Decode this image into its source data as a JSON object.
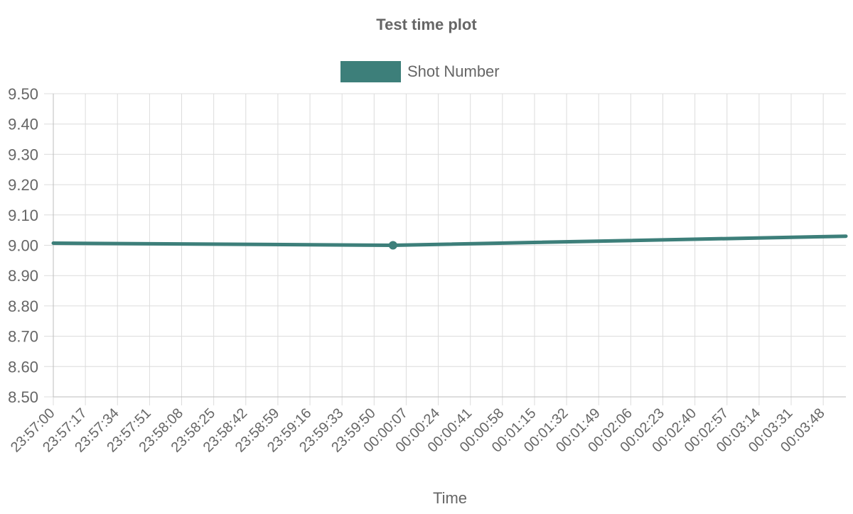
{
  "chart_data": {
    "type": "line",
    "title": "Test time plot",
    "xlabel": "Time",
    "ylabel": "",
    "x_ticks": [
      "23:57:00",
      "23:57:17",
      "23:57:34",
      "23:57:51",
      "23:58:08",
      "23:58:25",
      "23:58:42",
      "23:58:59",
      "23:59:16",
      "23:59:33",
      "23:59:50",
      "00:00:07",
      "00:00:24",
      "00:00:41",
      "00:00:58",
      "00:01:15",
      "00:01:32",
      "00:01:49",
      "00:02:06",
      "00:02:23",
      "00:02:40",
      "00:02:57",
      "00:03:14",
      "00:03:31",
      "00:03:48"
    ],
    "y_ticks": [
      "9.50",
      "9.40",
      "9.30",
      "9.20",
      "9.10",
      "9.00",
      "8.90",
      "8.80",
      "8.70",
      "8.60",
      "8.50"
    ],
    "ylim": [
      8.5,
      9.5
    ],
    "xlim": [
      "23:57:00",
      "00:04:00"
    ],
    "grid": true,
    "legend_position": "top",
    "series": [
      {
        "name": "Shot Number",
        "color": "#3d7f7a",
        "points": [
          {
            "x": "23:57:00",
            "y": 9.007
          },
          {
            "x": "00:00:00",
            "y": 9.0,
            "marker": true
          },
          {
            "x": "00:04:00",
            "y": 9.03
          }
        ]
      }
    ]
  }
}
